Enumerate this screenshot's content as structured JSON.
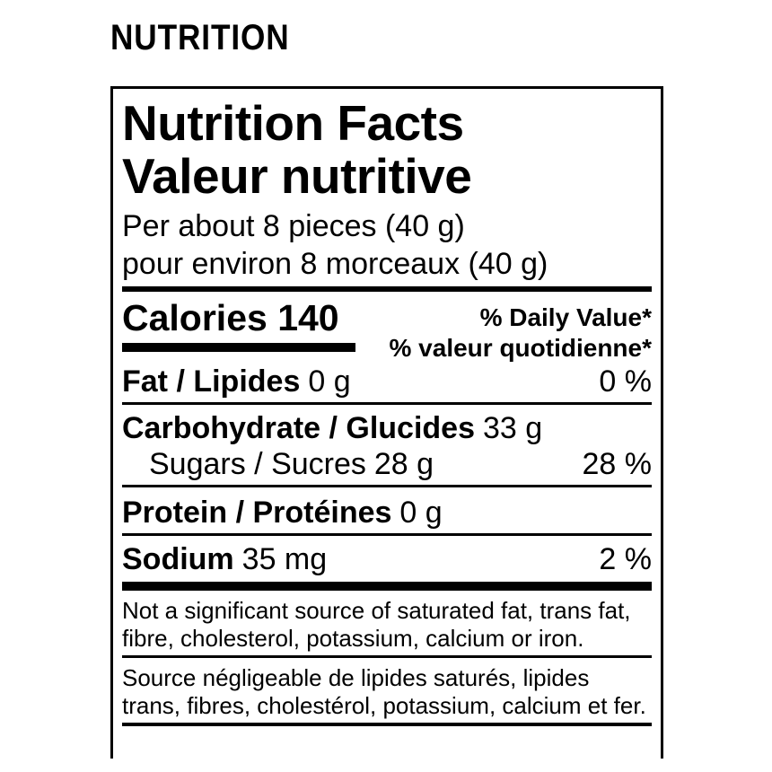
{
  "heading": "NUTRITION",
  "label": {
    "title_en": "Nutrition Facts",
    "title_fr": "Valeur nutritive",
    "serving_en": "Per about 8 pieces (40 g)",
    "serving_fr": "pour environ 8 morceaux (40 g)",
    "calories_line": "Calories 140",
    "daily_value_en": "% Daily Value*",
    "daily_value_fr": "% valeur quotidienne*",
    "rows": {
      "fat": {
        "name": "Fat / Lipides",
        "amount": "0 g",
        "dv": "0 %"
      },
      "carbohydrate": {
        "name": "Carbohydrate / Glucides",
        "amount": "33 g",
        "dv": ""
      },
      "sugars": {
        "name": "Sugars / Sucres",
        "amount": "28 g",
        "dv": "28 %"
      },
      "protein": {
        "name": "Protein / Protéines",
        "amount": "0 g",
        "dv": ""
      },
      "sodium": {
        "name": "Sodium",
        "amount": "35 mg",
        "dv": "2 %"
      }
    },
    "footnote_en": "Not a significant source of saturated fat, trans fat, fibre, cholesterol, potassium, calcium or iron.",
    "footnote_fr": "Source négligeable de lipides saturés, lipides trans, fibres, cholestérol, potassium, calcium et fer."
  },
  "colors": {
    "ink": "#000000",
    "background": "#ffffff"
  }
}
